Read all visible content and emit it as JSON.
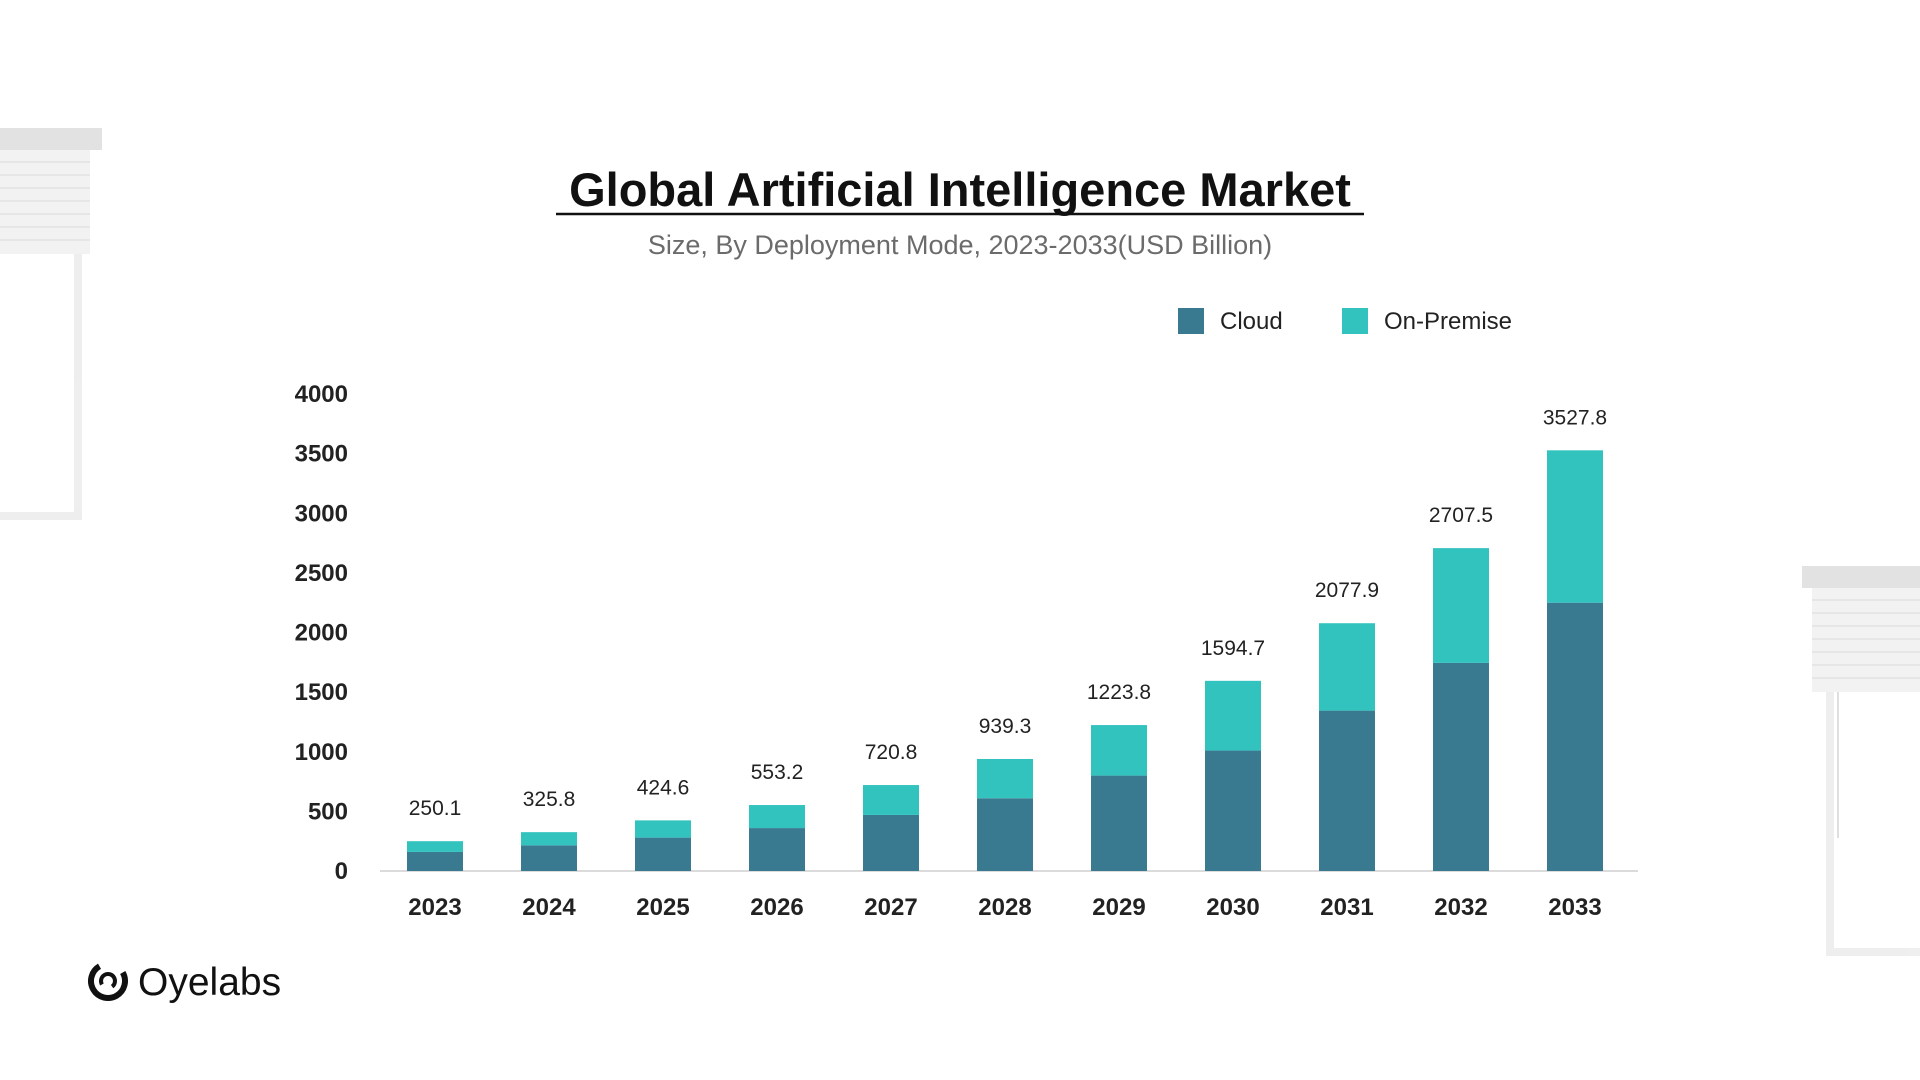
{
  "brand": {
    "name": "Oyelabs",
    "logo_icon": "oyelabs-ring-icon"
  },
  "chart_data": {
    "type": "bar",
    "stacked": true,
    "title": "Global Artificial Intelligence Market",
    "subtitle": "Size, By Deployment Mode, 2023-2033(USD Billion)",
    "categories": [
      "2023",
      "2024",
      "2025",
      "2026",
      "2027",
      "2028",
      "2029",
      "2030",
      "2031",
      "2032",
      "2033"
    ],
    "series": [
      {
        "name": "Cloud",
        "color": "#3a7a91",
        "values": [
          160,
          215,
          280,
          360,
          470,
          610,
          800,
          1010,
          1345,
          1745,
          2250
        ]
      },
      {
        "name": "On-Premise",
        "color": "#33c3bf",
        "values": [
          90.1,
          110.8,
          144.6,
          193.2,
          250.8,
          329.3,
          423.8,
          584.7,
          732.9,
          962.5,
          1277.8
        ]
      }
    ],
    "totals": [
      "250.1",
      "325.8",
      "424.6",
      "553.2",
      "720.8",
      "939.3",
      "1223.8",
      "1594.7",
      "2077.9",
      "2707.5",
      "3527.8"
    ],
    "y_ticks": [
      "0",
      "500",
      "1000",
      "1500",
      "2000",
      "2500",
      "3000",
      "3500",
      "4000"
    ],
    "ylim": [
      0,
      4000
    ],
    "grid": false,
    "legend_position": "top-right"
  }
}
